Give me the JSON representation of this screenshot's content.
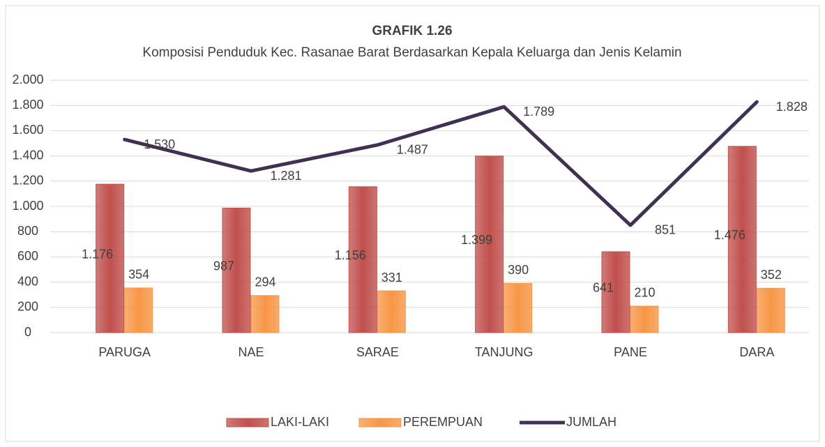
{
  "chart_data": {
    "type": "bar_line",
    "title": "GRAFIK 1.26",
    "subtitle": "Komposisi Penduduk Kec. Rasanae Barat Berdasarkan Kepala Keluarga dan Jenis Kelamin",
    "categories": [
      "PARUGA",
      "NAE",
      "SARAE",
      "TANJUNG",
      "PANE",
      "DARA"
    ],
    "series": [
      {
        "name": "LAKI-LAKI",
        "type": "bar",
        "color": "#c0504d",
        "values": [
          1176,
          987,
          1156,
          1399,
          641,
          1476
        ],
        "value_labels": [
          "1.176",
          "987",
          "1.156",
          "1.399",
          "641",
          "1.476"
        ]
      },
      {
        "name": "PEREMPUAN",
        "type": "bar",
        "color": "#f79646",
        "values": [
          354,
          294,
          331,
          390,
          210,
          352
        ]
      },
      {
        "name": "JUMLAH",
        "type": "line",
        "color": "#3f3151",
        "values": [
          1530,
          1281,
          1487,
          1789,
          851,
          1828
        ],
        "value_labels": [
          "1.530",
          "1.281",
          "1.487",
          "1.789",
          "851",
          "1.828"
        ]
      }
    ],
    "ylim": [
      0,
      2000
    ],
    "yticks": [
      0,
      200,
      400,
      600,
      800,
      {
        "value": 1000,
        "label": "1.000"
      },
      {
        "value": 1200,
        "label": "1.200"
      },
      {
        "value": 1400,
        "label": "1.400"
      },
      {
        "value": 1600,
        "label": "1.600"
      },
      {
        "value": 1800,
        "label": "1.800"
      },
      {
        "value": 2000,
        "label": "2.000"
      }
    ],
    "grid": true,
    "legend": "bottom"
  }
}
